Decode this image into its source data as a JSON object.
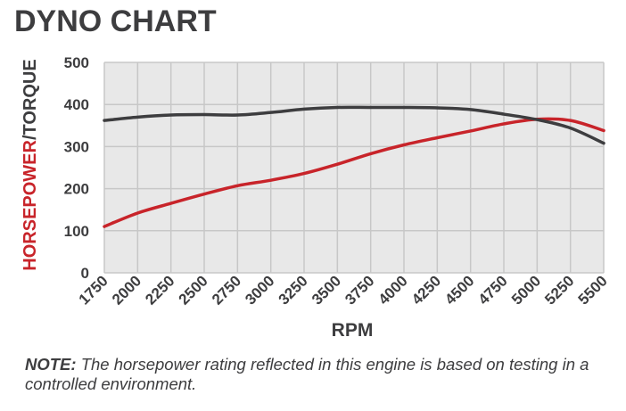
{
  "title": "DYNO CHART",
  "note": {
    "label": "NOTE:",
    "text": "The horsepower rating reflected in this engine is based on testing in a controlled environment."
  },
  "colors": {
    "horsepower": "#c8242a",
    "torque": "#3d3d3f",
    "grid": "#c7c7c7",
    "plot_background": "#e8e8e8"
  },
  "chart_data": {
    "type": "line",
    "title": "DYNO CHART",
    "xlabel": "RPM",
    "ylabel_parts": [
      {
        "text": "HORSEPOWER",
        "color": "#c8242a"
      },
      {
        "text": "/TORQUE",
        "color": "#3d3d3f"
      }
    ],
    "x": [
      1750,
      2000,
      2250,
      2500,
      2750,
      3000,
      3250,
      3500,
      3750,
      4000,
      4250,
      4500,
      4750,
      5000,
      5250,
      5500
    ],
    "xticks": [
      "1750",
      "2000",
      "2250",
      "2500",
      "2750",
      "3000",
      "3250",
      "3500",
      "3750",
      "4000",
      "4250",
      "4500",
      "4750",
      "5000",
      "5250",
      "5500"
    ],
    "yticks": [
      "0",
      "100",
      "200",
      "300",
      "400",
      "500"
    ],
    "ylim": [
      0,
      500
    ],
    "grid": true,
    "series": [
      {
        "name": "horsepower",
        "color": "#c8242a",
        "values": [
          110,
          142,
          165,
          187,
          207,
          220,
          236,
          258,
          283,
          304,
          321,
          337,
          354,
          365,
          362,
          338
        ]
      },
      {
        "name": "torque",
        "color": "#3d3d3f",
        "values": [
          362,
          370,
          375,
          376,
          375,
          381,
          389,
          393,
          393,
          393,
          392,
          388,
          377,
          364,
          344,
          308
        ]
      }
    ]
  }
}
